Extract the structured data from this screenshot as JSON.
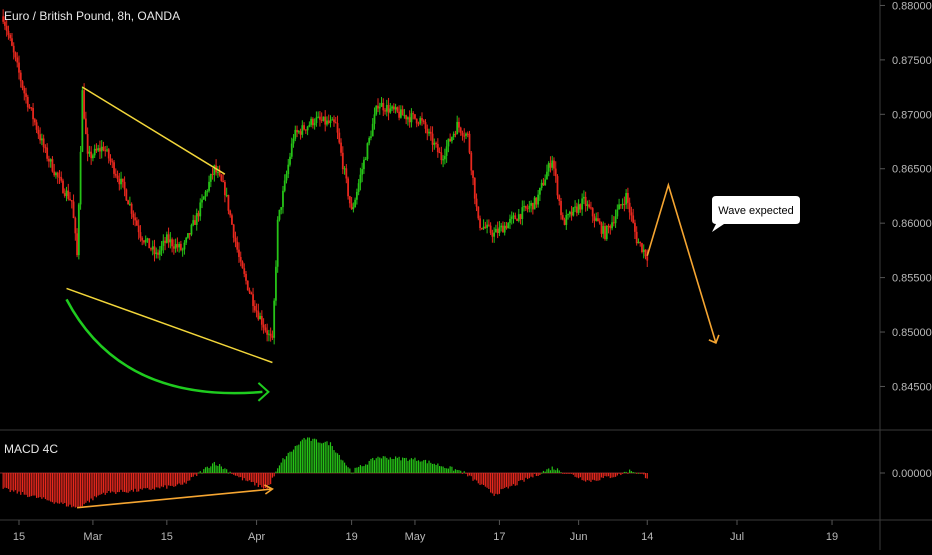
{
  "chart_data": [
    {
      "type": "candlestick",
      "title": "Euro / British Pound, 8h, OANDA",
      "ylim": [
        0.841,
        0.8805
      ],
      "y_ticks": [
        "0.88000",
        "0.87500",
        "0.87000",
        "0.86500",
        "0.86000",
        "0.85500",
        "0.85000",
        "0.84500"
      ],
      "x_ticks": [
        "15",
        "Mar",
        "15",
        "Apr",
        "19",
        "May",
        "17",
        "Jun",
        "14",
        "Jul",
        "19"
      ],
      "colors": {
        "up": "#26c317",
        "down": "#e8281e",
        "wedge": "#f2d63a",
        "curve": "#1fcc1f",
        "projection": "#f5a531"
      },
      "price_path": [
        [
          "Feb 12",
          0.879
        ],
        [
          "Feb 16",
          0.872
        ],
        [
          "Feb 20",
          0.8665
        ],
        [
          "Feb 23",
          0.8635
        ],
        [
          "Feb 25",
          0.862
        ],
        [
          "Feb 26",
          0.857
        ],
        [
          "Feb 27",
          0.872
        ],
        [
          "Feb 28",
          0.866
        ],
        [
          "Mar 3",
          0.867
        ],
        [
          "Mar 7",
          0.863
        ],
        [
          "Mar 10",
          0.859
        ],
        [
          "Mar 13",
          0.857
        ],
        [
          "Mar 15",
          0.8585
        ],
        [
          "Mar 18",
          0.8575
        ],
        [
          "Mar 21",
          0.861
        ],
        [
          "Mar 24",
          0.865
        ],
        [
          "Mar 26",
          0.863
        ],
        [
          "Mar 29",
          0.856
        ],
        [
          "Apr 1",
          0.852
        ],
        [
          "Apr 4",
          0.849
        ],
        [
          "Apr 5",
          0.86
        ],
        [
          "Apr 8",
          0.868
        ],
        [
          "Apr 12",
          0.8695
        ],
        [
          "Apr 16",
          0.869
        ],
        [
          "Apr 19",
          0.861
        ],
        [
          "Apr 21",
          0.865
        ],
        [
          "Apr 24",
          0.871
        ],
        [
          "Apr 28",
          0.87
        ],
        [
          "May 2",
          0.8695
        ],
        [
          "May 6",
          0.866
        ],
        [
          "May 9",
          0.869
        ],
        [
          "May 11",
          0.868
        ],
        [
          "May 13",
          0.86
        ],
        [
          "May 16",
          0.859
        ],
        [
          "May 20",
          0.8605
        ],
        [
          "May 24",
          0.862
        ],
        [
          "May 27",
          0.866
        ],
        [
          "May 29",
          0.86
        ],
        [
          "Jun 2",
          0.862
        ],
        [
          "Jun 6",
          0.859
        ],
        [
          "Jun 10",
          0.8625
        ],
        [
          "Jun 12",
          0.8585
        ],
        [
          "Jun 14",
          0.857
        ]
      ],
      "annotations": {
        "wedge": [
          [
            [
              "Feb 27",
              0.8725
            ],
            [
              "Mar 26",
              0.8645
            ]
          ],
          [
            [
              "Feb 24",
              0.854
            ],
            [
              "Apr 4",
              0.8472
            ]
          ]
        ],
        "projection": [
          [
            "Jun 14",
            0.857
          ],
          [
            "Jun 18",
            0.8635
          ],
          [
            "Jun 27",
            0.849
          ]
        ],
        "label": "Wave expected"
      }
    },
    {
      "type": "histogram",
      "title": "MACD 4C",
      "ylim": [
        -0.003,
        0.003
      ],
      "y_ticks": [
        "0.00000"
      ],
      "x_range": [
        "Feb 12",
        "Jun 14"
      ],
      "histogram_path": [
        [
          "Feb 12",
          -0.0012
        ],
        [
          "Feb 20",
          -0.002
        ],
        [
          "Feb 26",
          -0.0026
        ],
        [
          "Mar 3",
          -0.0015
        ],
        [
          "Mar 10",
          -0.0013
        ],
        [
          "Mar 18",
          -0.0009
        ],
        [
          "Mar 24",
          0.0008
        ],
        [
          "Mar 29",
          -0.0004
        ],
        [
          "Apr 3",
          -0.0012
        ],
        [
          "Apr 6",
          0.001
        ],
        [
          "Apr 10",
          0.0026
        ],
        [
          "Apr 15",
          0.0022
        ],
        [
          "Apr 19",
          0.0001
        ],
        [
          "Apr 24",
          0.0012
        ],
        [
          "May 2",
          0.001
        ],
        [
          "May 10",
          0.0001
        ],
        [
          "May 16",
          -0.0016
        ],
        [
          "May 22",
          -0.0005
        ],
        [
          "May 27",
          0.0004
        ],
        [
          "Jun 3",
          -0.0006
        ],
        [
          "Jun 8",
          -0.0002
        ],
        [
          "Jun 11",
          0.0002
        ],
        [
          "Jun 14",
          -0.0003
        ]
      ],
      "annotations": {
        "divergence": [
          [
            "Feb 26",
            -0.0026
          ],
          [
            "Apr 4",
            -0.0012
          ]
        ]
      }
    }
  ]
}
